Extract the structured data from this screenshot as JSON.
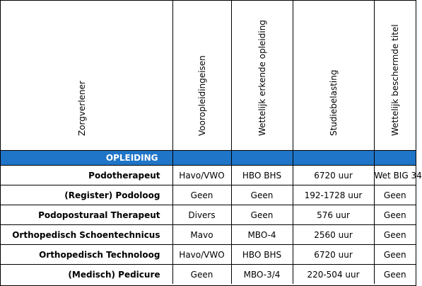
{
  "headers": {
    "zorgverlener": "Zorgverlener",
    "vooropleiding": "Vooropleidingeisen",
    "wettelijke_opleiding": "Wettelijk erkende opleiding",
    "studiebelasting": "Studiebelasting",
    "titel": "Wettelijk beschermde titel"
  },
  "section_label": "OPLEIDING",
  "rows": [
    {
      "name": "Podotherapeut",
      "vooropleiding": "Havo/VWO",
      "opleiding": "HBO BHS",
      "studiebelasting": "6720 uur",
      "titel": "Wet BIG 34"
    },
    {
      "name": "(Register) Podoloog",
      "vooropleiding": "Geen",
      "opleiding": "Geen",
      "studiebelasting": "192-1728 uur",
      "titel": "Geen"
    },
    {
      "name": "Podoposturaal Therapeut",
      "vooropleiding": "Divers",
      "opleiding": "Geen",
      "studiebelasting": "576 uur",
      "titel": "Geen"
    },
    {
      "name": "Orthopedisch Schoentechnicus",
      "vooropleiding": "Mavo",
      "opleiding": "MBO-4",
      "studiebelasting": "2560 uur",
      "titel": "Geen"
    },
    {
      "name": "Orthopedisch Technoloog",
      "vooropleiding": "Havo/VWO",
      "opleiding": "HBO BHS",
      "studiebelasting": "6720 uur",
      "titel": "Geen"
    },
    {
      "name": "(Medisch) Pedicure",
      "vooropleiding": "Geen",
      "opleiding": "MBO-3/4",
      "studiebelasting": "220-504 uur",
      "titel": "Geen"
    }
  ],
  "colors": {
    "band": "#1f75c7",
    "band_text": "#ffffff"
  }
}
